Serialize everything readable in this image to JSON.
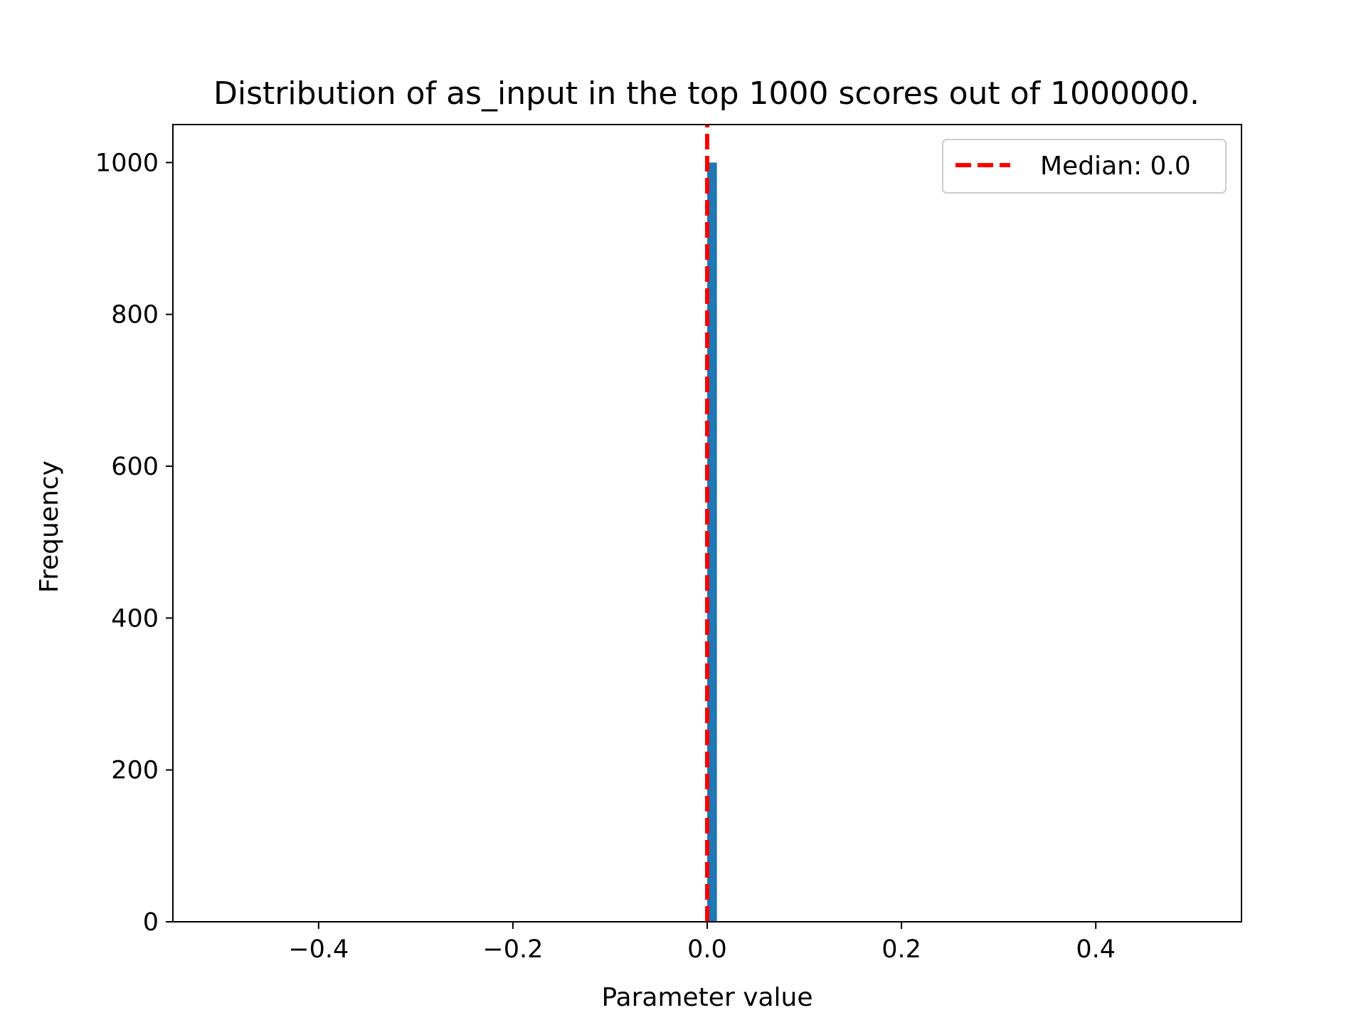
{
  "chart_data": {
    "type": "bar",
    "title": "Distribution of as_input in the top 1000 scores out of 1000000.",
    "xlabel": "Parameter value",
    "ylabel": "Frequency",
    "xlim": [
      -0.55,
      0.55
    ],
    "ylim": [
      0,
      1050
    ],
    "xticks": [
      -0.4,
      -0.2,
      0.0,
      0.2,
      0.4
    ],
    "xtick_labels": [
      "−0.4",
      "−0.2",
      "0.0",
      "0.2",
      "0.4"
    ],
    "yticks": [
      0,
      200,
      400,
      600,
      800,
      1000
    ],
    "ytick_labels": [
      "0",
      "200",
      "400",
      "600",
      "800",
      "1000"
    ],
    "grid": false,
    "bars": [
      {
        "x0": 0.0,
        "x1": 0.01,
        "value": 1000
      }
    ],
    "bar_color": "#1f77b4",
    "median": {
      "value": 0.0,
      "label": "Median: 0.0",
      "color": "#ff0000",
      "style": "dashed"
    },
    "legend": {
      "placement": "top-right",
      "entries": [
        "Median: 0.0"
      ]
    }
  }
}
